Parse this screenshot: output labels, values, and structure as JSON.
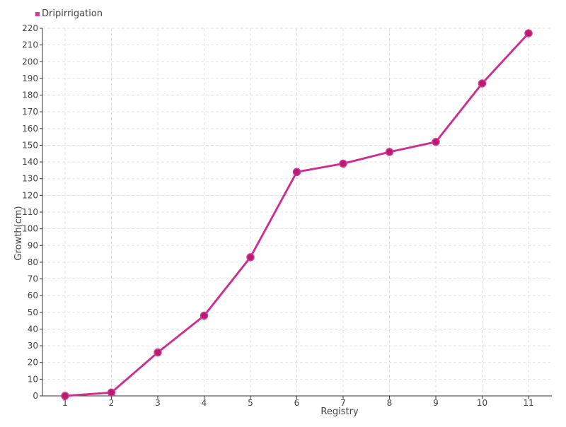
{
  "chart_data": {
    "type": "line",
    "xlabel": "Registry",
    "ylabel": "Growth(cm)",
    "categories": [
      "1",
      "2",
      "3",
      "4",
      "5",
      "6",
      "7",
      "8",
      "9",
      "10",
      "11"
    ],
    "series": [
      {
        "name": "Dripirrigation",
        "color": "#d63b9b",
        "marker_color": "#b71c6e",
        "values": [
          0,
          2,
          26,
          48,
          83,
          134,
          139,
          146,
          152,
          187,
          217
        ]
      }
    ],
    "ylim": [
      0,
      220
    ],
    "ytick_step": 10,
    "grid": true,
    "legend_position": "top-left"
  }
}
